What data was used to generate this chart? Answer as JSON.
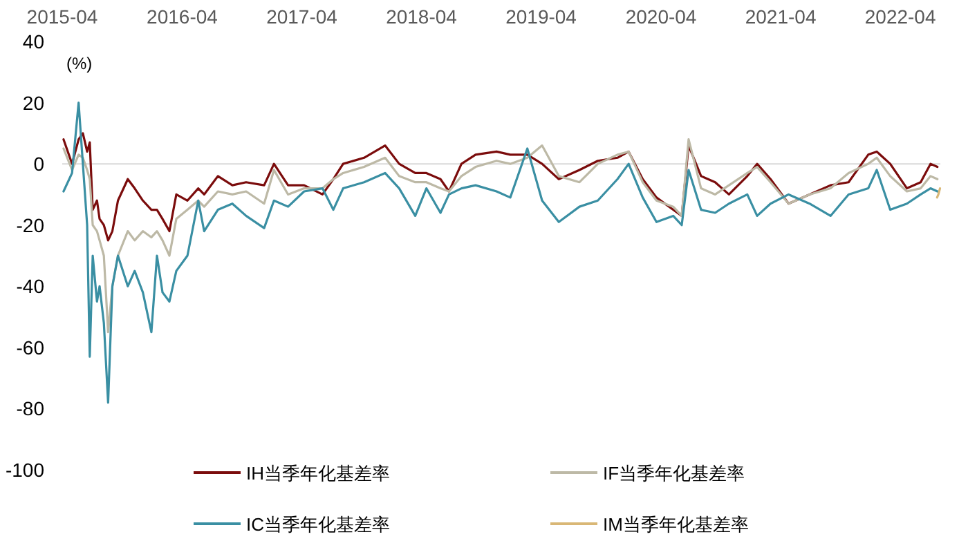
{
  "chart_data": {
    "type": "line",
    "ylabel": "(%)",
    "xlim": [
      "2015-04-01",
      "2022-08-01"
    ],
    "xticks": [
      "2015-04",
      "2016-04",
      "2017-04",
      "2018-04",
      "2019-04",
      "2020-04",
      "2021-04",
      "2022-04"
    ],
    "ylim": [
      -100,
      40
    ],
    "yticks": [
      -100,
      -80,
      -60,
      -40,
      -20,
      0,
      20,
      40
    ],
    "grid": false,
    "legend": "bottom",
    "marker": "none",
    "line_style": "solid",
    "ref_lines": [
      {
        "axis": "y",
        "value": 0,
        "color": "#d9d9d9"
      }
    ],
    "x": [
      "2015-04-05",
      "2015-05-01",
      "2015-05-21",
      "2015-06-03",
      "2015-06-16",
      "2015-06-24",
      "2015-07-03",
      "2015-07-16",
      "2015-07-24",
      "2015-08-06",
      "2015-08-19",
      "2015-09-01",
      "2015-09-18",
      "2015-10-18",
      "2015-11-08",
      "2015-12-03",
      "2015-12-29",
      "2016-01-15",
      "2016-02-01",
      "2016-02-22",
      "2016-03-14",
      "2016-04-17",
      "2016-05-20",
      "2016-06-07",
      "2016-07-19",
      "2016-09-01",
      "2016-10-13",
      "2016-12-07",
      "2017-01-06",
      "2017-02-18",
      "2017-04-08",
      "2017-06-03",
      "2017-07-06",
      "2017-08-05",
      "2017-10-08",
      "2017-12-11",
      "2018-01-23",
      "2018-03-13",
      "2018-04-16",
      "2018-05-29",
      "2018-06-24",
      "2018-08-01",
      "2018-09-13",
      "2018-11-16",
      "2018-12-28",
      "2019-02-18",
      "2019-04-04",
      "2019-05-25",
      "2019-07-27",
      "2019-09-21",
      "2019-11-20",
      "2019-12-24",
      "2020-02-05",
      "2020-03-18",
      "2020-05-08",
      "2020-06-03",
      "2020-06-24",
      "2020-08-01",
      "2020-09-13",
      "2020-10-25",
      "2020-12-20",
      "2021-01-19",
      "2021-03-01",
      "2021-04-25",
      "2021-06-28",
      "2021-08-31",
      "2021-10-25",
      "2021-12-24",
      "2022-01-19",
      "2022-03-01",
      "2022-04-21",
      "2022-06-02",
      "2022-07-02",
      "2022-07-23"
    ],
    "series": [
      {
        "name": "IH当季年化基差率",
        "color": "#7b0c0c",
        "values": [
          8,
          0,
          8,
          10,
          4,
          7,
          -15,
          -12,
          -18,
          -20,
          -25,
          -22,
          -12,
          -5,
          -8,
          -12,
          -15,
          -15,
          -18,
          -22,
          -10,
          -12,
          -8,
          -10,
          -4,
          -7,
          -6,
          -7,
          0,
          -7,
          -7,
          -10,
          -5,
          0,
          2,
          6,
          0,
          -3,
          -3,
          -5,
          -9,
          0,
          3,
          4,
          3,
          3,
          0,
          -5,
          -2,
          1,
          2,
          4,
          -5,
          -11,
          -15,
          -17,
          6,
          -4,
          -6,
          -10,
          -4,
          0,
          -5,
          -13,
          -10,
          -7,
          -6,
          3,
          4,
          0,
          -8,
          -6,
          0,
          -1
        ]
      },
      {
        "name": "IF当季年化基差率",
        "color": "#bdb9a6",
        "values": [
          5,
          -2,
          3,
          2,
          -2,
          -5,
          -20,
          -22,
          -25,
          -30,
          -55,
          -40,
          -30,
          -22,
          -25,
          -22,
          -24,
          -22,
          -25,
          -30,
          -18,
          -15,
          -12,
          -14,
          -9,
          -10,
          -9,
          -13,
          -2,
          -10,
          -8,
          -8,
          -5,
          -3,
          -1,
          2,
          -4,
          -6,
          -6,
          -8,
          -9,
          -4,
          -1,
          1,
          0,
          2,
          6,
          -4,
          -6,
          0,
          3,
          4,
          -6,
          -12,
          -14,
          -17,
          8,
          -8,
          -10,
          -7,
          -3,
          -1,
          -6,
          -13,
          -10,
          -8,
          -3,
          0,
          2,
          -4,
          -9,
          -8,
          -4,
          -5
        ]
      },
      {
        "name": "IC当季年化基差率",
        "color": "#3a8fa3",
        "values": [
          -9,
          -3,
          20,
          0,
          -20,
          -63,
          -30,
          -45,
          -40,
          -52,
          -78,
          -40,
          -30,
          -40,
          -35,
          -42,
          -55,
          -30,
          -42,
          -45,
          -35,
          -30,
          -12,
          -22,
          -15,
          -13,
          -17,
          -21,
          -12,
          -14,
          -9,
          -8,
          -15,
          -8,
          -6,
          -3,
          -8,
          -17,
          -8,
          -16,
          -10,
          -8,
          -7,
          -9,
          -11,
          5,
          -12,
          -19,
          -14,
          -12,
          -5,
          0,
          -11,
          -19,
          -17,
          -20,
          -2,
          -15,
          -16,
          -13,
          -10,
          -17,
          -13,
          -10,
          -13,
          -17,
          -10,
          -8,
          -2,
          -15,
          -13,
          -10,
          -8,
          -9
        ]
      },
      {
        "name": "IM当季年化基差率",
        "color": "#d9b776",
        "x": [
          "2022-07-22",
          "2022-07-26",
          "2022-07-31"
        ],
        "values": [
          -11,
          -10,
          -8
        ]
      }
    ]
  }
}
